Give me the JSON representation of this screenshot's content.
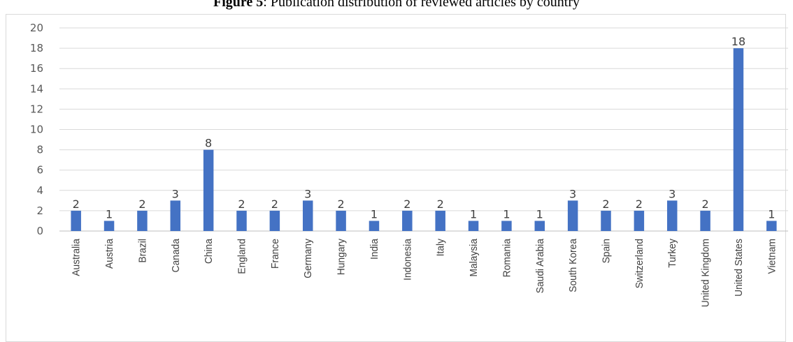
{
  "caption": {
    "label": "Figure 5",
    "text": ": Publication distribution of reviewed articles by country"
  },
  "colors": {
    "bar": "#4472C4",
    "grid": "#d9d9d9",
    "axis": "#bfbfbf"
  },
  "chart_data": {
    "type": "bar",
    "title": "",
    "xlabel": "",
    "ylabel": "",
    "ylim": [
      0,
      20
    ],
    "yticks": [
      0,
      2,
      4,
      6,
      8,
      10,
      12,
      14,
      16,
      18,
      20
    ],
    "grid": true,
    "data_labels": true,
    "categories": [
      "Australia",
      "Austria",
      "Brazil",
      "Canada",
      "China",
      "England",
      "France",
      "Germany",
      "Hungary",
      "India",
      "Indonesia",
      "Italy",
      "Malaysia",
      "Romania",
      "Saudi Arabia",
      "South Korea",
      "Spain",
      "Switzerland",
      "Turkey",
      "United Kingdom",
      "United States",
      "Vietnam"
    ],
    "values": [
      2,
      1,
      2,
      3,
      8,
      2,
      2,
      3,
      2,
      1,
      2,
      2,
      1,
      1,
      1,
      3,
      2,
      2,
      3,
      2,
      18,
      1
    ]
  }
}
